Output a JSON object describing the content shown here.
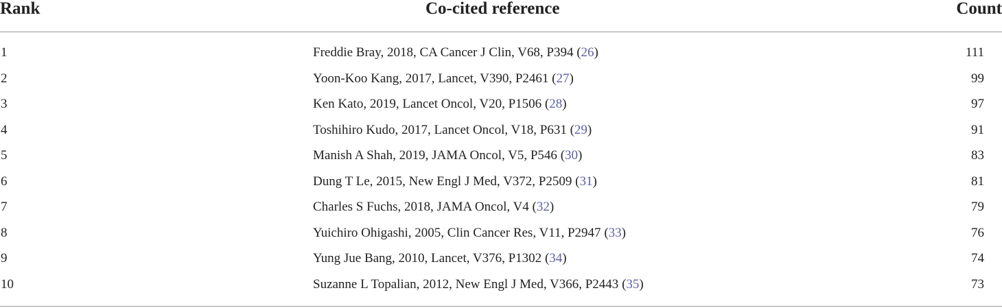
{
  "table": {
    "headers": {
      "rank": "Rank",
      "reference": "Co-cited reference",
      "count": "Count"
    },
    "link_color": "#5b5ea6",
    "rows": [
      {
        "rank": "1",
        "citation": "Freddie Bray, 2018, CA Cancer J Clin, V68, P394",
        "ref_num": "26",
        "count": "111"
      },
      {
        "rank": "2",
        "citation": "Yoon-Koo Kang, 2017, Lancet, V390, P2461",
        "ref_num": "27",
        "count": "99"
      },
      {
        "rank": "3",
        "citation": "Ken Kato, 2019, Lancet Oncol, V20, P1506",
        "ref_num": "28",
        "count": "97"
      },
      {
        "rank": "4",
        "citation": "Toshihiro Kudo, 2017, Lancet Oncol, V18, P631",
        "ref_num": "29",
        "count": "91"
      },
      {
        "rank": "5",
        "citation": "Manish A Shah, 2019, JAMA Oncol, V5, P546",
        "ref_num": "30",
        "count": "83"
      },
      {
        "rank": "6",
        "citation": "Dung T Le, 2015, New Engl J Med, V372, P2509",
        "ref_num": "31",
        "count": "81"
      },
      {
        "rank": "7",
        "citation": "Charles S Fuchs, 2018, JAMA Oncol, V4",
        "ref_num": "32",
        "count": "79"
      },
      {
        "rank": "8",
        "citation": "Yuichiro Ohigashi, 2005, Clin Cancer Res, V11, P2947",
        "ref_num": "33",
        "count": "76"
      },
      {
        "rank": "9",
        "citation": "Yung Jue Bang, 2010, Lancet, V376, P1302",
        "ref_num": "34",
        "count": "74"
      },
      {
        "rank": "10",
        "citation": "Suzanne L Topalian, 2012, New Engl J Med, V366, P2443",
        "ref_num": "35",
        "count": "73"
      }
    ]
  }
}
